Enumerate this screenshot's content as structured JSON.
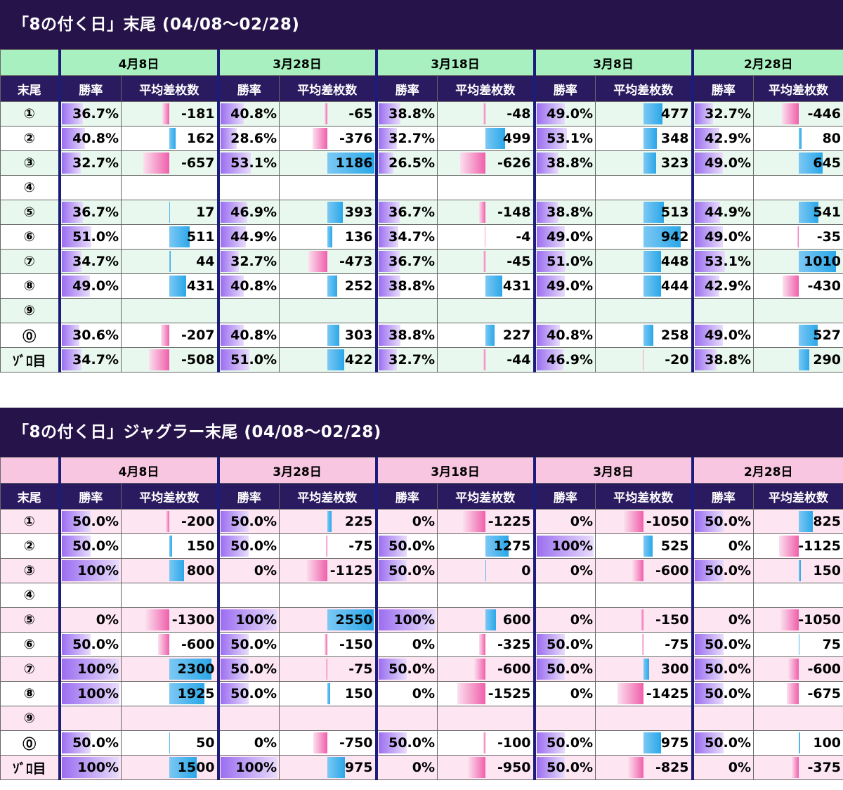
{
  "sections": [
    {
      "title": "「8の付く日」末尾 (04/08～02/28)",
      "theme": {
        "date_bg": "#a8f0c0",
        "alt_row": "#e8f8ee",
        "base_row": "#ffffff"
      },
      "header": {
        "corner": "末尾",
        "rate_label": "勝率",
        "diff_label": "平均差枚数"
      },
      "dates": [
        "4月8日",
        "3月28日",
        "3月18日",
        "3月8日",
        "2月28日"
      ],
      "diff_scale": 1200,
      "rows": [
        {
          "label": "①",
          "cells": [
            {
              "rate": "36.7%",
              "diff": "-181"
            },
            {
              "rate": "40.8%",
              "diff": "-65"
            },
            {
              "rate": "38.8%",
              "diff": "-48"
            },
            {
              "rate": "49.0%",
              "diff": "477"
            },
            {
              "rate": "32.7%",
              "diff": "-446"
            }
          ]
        },
        {
          "label": "②",
          "cells": [
            {
              "rate": "40.8%",
              "diff": "162"
            },
            {
              "rate": "28.6%",
              "diff": "-376"
            },
            {
              "rate": "32.7%",
              "diff": "499"
            },
            {
              "rate": "53.1%",
              "diff": "348"
            },
            {
              "rate": "42.9%",
              "diff": "80"
            }
          ]
        },
        {
          "label": "③",
          "cells": [
            {
              "rate": "32.7%",
              "diff": "-657"
            },
            {
              "rate": "53.1%",
              "diff": "1186"
            },
            {
              "rate": "26.5%",
              "diff": "-626"
            },
            {
              "rate": "38.8%",
              "diff": "323"
            },
            {
              "rate": "49.0%",
              "diff": "645"
            }
          ]
        },
        {
          "label": "④",
          "cells": [
            {
              "rate": "",
              "diff": ""
            },
            {
              "rate": "",
              "diff": ""
            },
            {
              "rate": "",
              "diff": ""
            },
            {
              "rate": "",
              "diff": ""
            },
            {
              "rate": "",
              "diff": ""
            }
          ]
        },
        {
          "label": "⑤",
          "cells": [
            {
              "rate": "36.7%",
              "diff": "17"
            },
            {
              "rate": "46.9%",
              "diff": "393"
            },
            {
              "rate": "36.7%",
              "diff": "-148"
            },
            {
              "rate": "38.8%",
              "diff": "513"
            },
            {
              "rate": "44.9%",
              "diff": "541"
            }
          ]
        },
        {
          "label": "⑥",
          "cells": [
            {
              "rate": "51.0%",
              "diff": "511"
            },
            {
              "rate": "44.9%",
              "diff": "136"
            },
            {
              "rate": "34.7%",
              "diff": "-4"
            },
            {
              "rate": "49.0%",
              "diff": "942"
            },
            {
              "rate": "49.0%",
              "diff": "-35"
            }
          ]
        },
        {
          "label": "⑦",
          "cells": [
            {
              "rate": "34.7%",
              "diff": "44"
            },
            {
              "rate": "32.7%",
              "diff": "-473"
            },
            {
              "rate": "36.7%",
              "diff": "-45"
            },
            {
              "rate": "51.0%",
              "diff": "448"
            },
            {
              "rate": "53.1%",
              "diff": "1010"
            }
          ]
        },
        {
          "label": "⑧",
          "cells": [
            {
              "rate": "49.0%",
              "diff": "431"
            },
            {
              "rate": "40.8%",
              "diff": "252"
            },
            {
              "rate": "38.8%",
              "diff": "431"
            },
            {
              "rate": "49.0%",
              "diff": "444"
            },
            {
              "rate": "42.9%",
              "diff": "-430"
            }
          ]
        },
        {
          "label": "⑨",
          "cells": [
            {
              "rate": "",
              "diff": ""
            },
            {
              "rate": "",
              "diff": ""
            },
            {
              "rate": "",
              "diff": ""
            },
            {
              "rate": "",
              "diff": ""
            },
            {
              "rate": "",
              "diff": ""
            }
          ]
        },
        {
          "label": "⓪",
          "cells": [
            {
              "rate": "30.6%",
              "diff": "-207"
            },
            {
              "rate": "40.8%",
              "diff": "303"
            },
            {
              "rate": "38.8%",
              "diff": "227"
            },
            {
              "rate": "40.8%",
              "diff": "258"
            },
            {
              "rate": "49.0%",
              "diff": "527"
            }
          ]
        },
        {
          "label": "ｿﾞﾛ目",
          "cells": [
            {
              "rate": "34.7%",
              "diff": "-508"
            },
            {
              "rate": "51.0%",
              "diff": "422"
            },
            {
              "rate": "32.7%",
              "diff": "-44"
            },
            {
              "rate": "46.9%",
              "diff": "-20"
            },
            {
              "rate": "38.8%",
              "diff": "290"
            }
          ]
        }
      ]
    },
    {
      "title": "「8の付く日」ジャグラー末尾 (04/08～02/28)",
      "theme": {
        "date_bg": "#f9c6e2",
        "alt_row": "#fde6f2",
        "base_row": "#ffffff"
      },
      "header": {
        "corner": "末尾",
        "rate_label": "勝率",
        "diff_label": "平均差枚数"
      },
      "dates": [
        "4月8日",
        "3月28日",
        "3月18日",
        "3月8日",
        "2月28日"
      ],
      "diff_scale": 2600,
      "rows": [
        {
          "label": "①",
          "cells": [
            {
              "rate": "50.0%",
              "diff": "-200"
            },
            {
              "rate": "50.0%",
              "diff": "225"
            },
            {
              "rate": "0%",
              "diff": "-1225"
            },
            {
              "rate": "0%",
              "diff": "-1050"
            },
            {
              "rate": "50.0%",
              "diff": "825"
            }
          ]
        },
        {
          "label": "②",
          "cells": [
            {
              "rate": "50.0%",
              "diff": "150"
            },
            {
              "rate": "50.0%",
              "diff": "-75"
            },
            {
              "rate": "50.0%",
              "diff": "1275"
            },
            {
              "rate": "100%",
              "diff": "525"
            },
            {
              "rate": "0%",
              "diff": "-1125"
            }
          ]
        },
        {
          "label": "③",
          "cells": [
            {
              "rate": "100%",
              "diff": "800"
            },
            {
              "rate": "0%",
              "diff": "-1125"
            },
            {
              "rate": "50.0%",
              "diff": "0"
            },
            {
              "rate": "0%",
              "diff": "-600"
            },
            {
              "rate": "50.0%",
              "diff": "150"
            }
          ]
        },
        {
          "label": "④",
          "cells": [
            {
              "rate": "",
              "diff": ""
            },
            {
              "rate": "",
              "diff": ""
            },
            {
              "rate": "",
              "diff": ""
            },
            {
              "rate": "",
              "diff": ""
            },
            {
              "rate": "",
              "diff": ""
            }
          ]
        },
        {
          "label": "⑤",
          "cells": [
            {
              "rate": "0%",
              "diff": "-1300"
            },
            {
              "rate": "100%",
              "diff": "2550"
            },
            {
              "rate": "100%",
              "diff": "600"
            },
            {
              "rate": "0%",
              "diff": "-150"
            },
            {
              "rate": "0%",
              "diff": "-1050"
            }
          ]
        },
        {
          "label": "⑥",
          "cells": [
            {
              "rate": "50.0%",
              "diff": "-600"
            },
            {
              "rate": "50.0%",
              "diff": "-150"
            },
            {
              "rate": "0%",
              "diff": "-325"
            },
            {
              "rate": "50.0%",
              "diff": "-75"
            },
            {
              "rate": "50.0%",
              "diff": "75"
            }
          ]
        },
        {
          "label": "⑦",
          "cells": [
            {
              "rate": "100%",
              "diff": "2300"
            },
            {
              "rate": "50.0%",
              "diff": "-75"
            },
            {
              "rate": "50.0%",
              "diff": "-600"
            },
            {
              "rate": "50.0%",
              "diff": "300"
            },
            {
              "rate": "50.0%",
              "diff": "-600"
            }
          ]
        },
        {
          "label": "⑧",
          "cells": [
            {
              "rate": "100%",
              "diff": "1925"
            },
            {
              "rate": "50.0%",
              "diff": "150"
            },
            {
              "rate": "0%",
              "diff": "-1525"
            },
            {
              "rate": "0%",
              "diff": "-1425"
            },
            {
              "rate": "50.0%",
              "diff": "-675"
            }
          ]
        },
        {
          "label": "⑨",
          "cells": [
            {
              "rate": "",
              "diff": ""
            },
            {
              "rate": "",
              "diff": ""
            },
            {
              "rate": "",
              "diff": ""
            },
            {
              "rate": "",
              "diff": ""
            },
            {
              "rate": "",
              "diff": ""
            }
          ]
        },
        {
          "label": "⓪",
          "cells": [
            {
              "rate": "50.0%",
              "diff": "50"
            },
            {
              "rate": "0%",
              "diff": "-750"
            },
            {
              "rate": "50.0%",
              "diff": "-100"
            },
            {
              "rate": "50.0%",
              "diff": "975"
            },
            {
              "rate": "50.0%",
              "diff": "100"
            }
          ]
        },
        {
          "label": "ｿﾞﾛ目",
          "cells": [
            {
              "rate": "100%",
              "diff": "1500"
            },
            {
              "rate": "100%",
              "diff": "975"
            },
            {
              "rate": "0%",
              "diff": "-950"
            },
            {
              "rate": "50.0%",
              "diff": "-825"
            },
            {
              "rate": "0%",
              "diff": "-375"
            }
          ]
        }
      ]
    }
  ]
}
